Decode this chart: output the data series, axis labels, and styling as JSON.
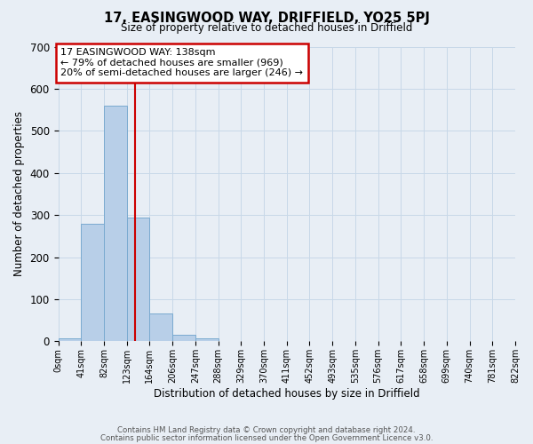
{
  "title": "17, EASINGWOOD WAY, DRIFFIELD, YO25 5PJ",
  "subtitle": "Size of property relative to detached houses in Driffield",
  "xlabel": "Distribution of detached houses by size in Driffield",
  "ylabel": "Number of detached properties",
  "bin_labels": [
    "0sqm",
    "41sqm",
    "82sqm",
    "123sqm",
    "164sqm",
    "206sqm",
    "247sqm",
    "288sqm",
    "329sqm",
    "370sqm",
    "411sqm",
    "452sqm",
    "493sqm",
    "535sqm",
    "576sqm",
    "617sqm",
    "658sqm",
    "699sqm",
    "740sqm",
    "781sqm",
    "822sqm"
  ],
  "bar_values": [
    7,
    280,
    560,
    295,
    67,
    15,
    8,
    0,
    0,
    0,
    0,
    0,
    0,
    0,
    0,
    0,
    0,
    0,
    0,
    0
  ],
  "bar_color": "#b8cfe8",
  "bar_edge_color": "#7aaad0",
  "ylim": [
    0,
    700
  ],
  "yticks": [
    0,
    100,
    200,
    300,
    400,
    500,
    600,
    700
  ],
  "bin_width": 41,
  "property_line_x": 138,
  "annotation_title": "17 EASINGWOOD WAY: 138sqm",
  "annotation_line1": "← 79% of detached houses are smaller (969)",
  "annotation_line2": "20% of semi-detached houses are larger (246) →",
  "annotation_box_color": "#ffffff",
  "annotation_box_edge_color": "#cc0000",
  "property_line_color": "#cc0000",
  "grid_color": "#c8d8e8",
  "background_color": "#e8eef5",
  "footer1": "Contains HM Land Registry data © Crown copyright and database right 2024.",
  "footer2": "Contains public sector information licensed under the Open Government Licence v3.0."
}
